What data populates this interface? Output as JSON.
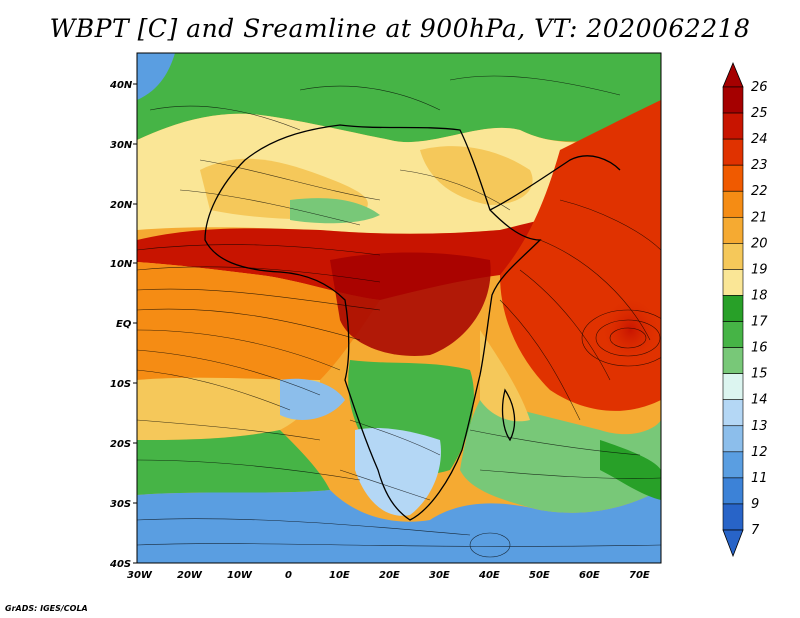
{
  "title": "WBPT [C] and Sreamline at 900hPa, VT: 2020062218",
  "credit": "GrADS: IGES/COLA",
  "map": {
    "lat_labels": [
      "40N",
      "30N",
      "20N",
      "10N",
      "EQ",
      "10S",
      "20S",
      "30S",
      "40S"
    ],
    "lon_labels": [
      "30W",
      "20W",
      "10W",
      "0",
      "10E",
      "20E",
      "30E",
      "40E",
      "50E",
      "60E",
      "70E"
    ],
    "lon_range": [
      -30,
      75
    ],
    "lat_range": [
      -40,
      45
    ]
  },
  "colorbar": {
    "levels": [
      "26",
      "25",
      "24",
      "23",
      "22",
      "21",
      "20",
      "19",
      "18",
      "17",
      "16",
      "15",
      "14",
      "13",
      "12",
      "11",
      "9",
      "7"
    ],
    "colors": [
      "#a50000",
      "#c81400",
      "#e03200",
      "#f05a00",
      "#f58c14",
      "#f5aa32",
      "#f5c85a",
      "#fae696",
      "#28a028",
      "#46b446",
      "#78c878",
      "#dcf5f0",
      "#b4d7f5",
      "#8cbeeb",
      "#5a9ee1",
      "#3c82d7",
      "#2864c8"
    ]
  }
}
